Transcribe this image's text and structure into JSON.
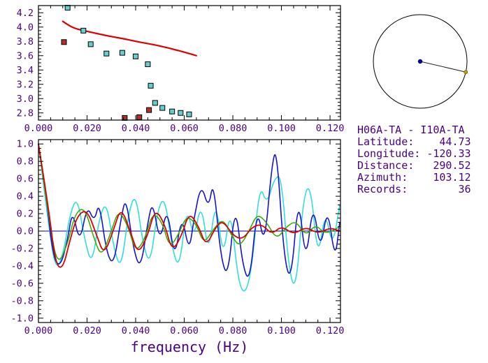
{
  "colors": {
    "text": "#4b0082",
    "axis": "#000000",
    "zero_line": "#000080",
    "center_dot": "#000080",
    "azimuth_dot": "#b8a000",
    "circle_outline": "#000000"
  },
  "info_panel": {
    "title": "H06A-TA - I10A-TA",
    "lines": [
      "Latitude:    44.73",
      "Longitude: -120.33",
      "Distance:   290.52",
      "Azimuth:    103.12",
      "Records:        36"
    ]
  },
  "chart_data": [
    {
      "type": "scatter",
      "title": "",
      "xlabel": "",
      "ylabel": "",
      "xlim": [
        0,
        0.1243
      ],
      "ylim": [
        2.7,
        4.3
      ],
      "x_minor": 0.005,
      "y_minor": 0.05,
      "grid": false,
      "legend": "none",
      "xticks": [
        0,
        0.02,
        0.04,
        0.06,
        0.08,
        0.1,
        0.12
      ],
      "xtick_labels": [
        "0.000",
        "0.020",
        "0.040",
        "0.060",
        "0.080",
        "0.100",
        "0.120"
      ],
      "yticks": [
        2.8,
        3.0,
        3.2,
        3.4,
        3.6,
        3.8,
        4.0,
        4.2
      ],
      "ytick_labels": [
        "2.8",
        "3.0",
        "3.2",
        "3.4",
        "3.6",
        "3.8",
        "4.0",
        "4.2"
      ],
      "series": [
        {
          "name": "reference-dispersion-curve",
          "kind": "line",
          "color": "#dd0000",
          "width": 2.2,
          "points": [
            [
              0.01,
              4.08
            ],
            [
              0.013,
              4.01
            ],
            [
              0.016,
              3.97
            ],
            [
              0.02,
              3.94
            ],
            [
              0.024,
              3.91
            ],
            [
              0.028,
              3.88
            ],
            [
              0.032,
              3.855
            ],
            [
              0.036,
              3.83
            ],
            [
              0.04,
              3.8
            ],
            [
              0.044,
              3.775
            ],
            [
              0.048,
              3.75
            ],
            [
              0.052,
              3.72
            ],
            [
              0.056,
              3.685
            ],
            [
              0.06,
              3.65
            ],
            [
              0.063,
              3.62
            ],
            [
              0.065,
              3.6
            ]
          ]
        },
        {
          "name": "accepted-measurements",
          "kind": "scatter",
          "marker": "square",
          "color": "#63cfcf",
          "points": [
            [
              0.012,
              4.27
            ],
            [
              0.0185,
              3.95
            ],
            [
              0.0215,
              3.76
            ],
            [
              0.028,
              3.63
            ],
            [
              0.0345,
              3.64
            ],
            [
              0.04,
              3.59
            ],
            [
              0.045,
              3.48
            ],
            [
              0.0462,
              3.18
            ],
            [
              0.048,
              2.94
            ],
            [
              0.051,
              2.87
            ],
            [
              0.055,
              2.82
            ],
            [
              0.0585,
              2.8
            ],
            [
              0.062,
              2.78
            ]
          ]
        },
        {
          "name": "rejected-measurements",
          "kind": "scatter",
          "marker": "square",
          "color": "#b03030",
          "points": [
            [
              0.0105,
              3.79
            ],
            [
              0.0355,
              2.73
            ],
            [
              0.0415,
              2.74
            ],
            [
              0.0455,
              2.84
            ]
          ]
        }
      ]
    },
    {
      "type": "line",
      "title": "",
      "xlabel": "frequency (Hz)",
      "ylabel": "",
      "xlim": [
        0,
        0.1243
      ],
      "ylim": [
        -1.05,
        1.05
      ],
      "x_minor": 0.005,
      "y_minor": 0.05,
      "grid": false,
      "legend": "none",
      "zero_line": true,
      "xticks": [
        0,
        0.02,
        0.04,
        0.06,
        0.08,
        0.1,
        0.12
      ],
      "xtick_labels": [
        "0.000",
        "0.020",
        "0.040",
        "0.060",
        "0.080",
        "0.100",
        "0.120"
      ],
      "yticks": [
        -1.0,
        -0.8,
        -0.6,
        -0.4,
        -0.2,
        0.0,
        0.2,
        0.4,
        0.6,
        0.8,
        1.0
      ],
      "ytick_labels": [
        "-1.0",
        "-0.8",
        "-0.6",
        "-0.4",
        "-0.2",
        "0.0",
        "0.2",
        "0.4",
        "0.6",
        "0.8",
        "1.0"
      ],
      "series": [
        {
          "name": "trace-cyan",
          "kind": "line",
          "color": "#30dede",
          "width": 1.6,
          "points": [
            [
              0,
              1.0
            ],
            [
              0.004,
              0.1
            ],
            [
              0.007,
              -0.45
            ],
            [
              0.01,
              -0.3
            ],
            [
              0.013,
              0.2
            ],
            [
              0.016,
              0.4
            ],
            [
              0.019,
              -0.1
            ],
            [
              0.022,
              -0.4
            ],
            [
              0.025,
              0.15
            ],
            [
              0.028,
              0.35
            ],
            [
              0.031,
              -0.2
            ],
            [
              0.034,
              -0.45
            ],
            [
              0.037,
              0.2
            ],
            [
              0.04,
              0.45
            ],
            [
              0.043,
              -0.15
            ],
            [
              0.046,
              -0.4
            ],
            [
              0.049,
              0.25
            ],
            [
              0.052,
              0.4
            ],
            [
              0.055,
              -0.2
            ],
            [
              0.058,
              -0.45
            ],
            [
              0.061,
              0.3
            ],
            [
              0.064,
              -0.1
            ],
            [
              0.067,
              0.35
            ],
            [
              0.07,
              -0.3
            ],
            [
              0.073,
              0.4
            ],
            [
              0.076,
              -0.35
            ],
            [
              0.079,
              0.3
            ],
            [
              0.082,
              -0.55
            ],
            [
              0.085,
              -0.75
            ],
            [
              0.088,
              -0.4
            ],
            [
              0.091,
              0.55
            ],
            [
              0.094,
              0.3
            ],
            [
              0.097,
              0.6
            ],
            [
              0.1,
              0.65
            ],
            [
              0.103,
              -0.45
            ],
            [
              0.106,
              -0.7
            ],
            [
              0.109,
              0.4
            ],
            [
              0.112,
              0.55
            ],
            [
              0.115,
              -0.35
            ],
            [
              0.118,
              0.25
            ],
            [
              0.121,
              -0.2
            ],
            [
              0.124,
              0.3
            ]
          ]
        },
        {
          "name": "trace-blue",
          "kind": "line",
          "color": "#1414cc",
          "width": 1.6,
          "points": [
            [
              0,
              1.0
            ],
            [
              0.003,
              0.45
            ],
            [
              0.006,
              -0.3
            ],
            [
              0.009,
              -0.42
            ],
            [
              0.012,
              -0.1
            ],
            [
              0.014,
              0.25
            ],
            [
              0.017,
              -0.15
            ],
            [
              0.02,
              0.3
            ],
            [
              0.023,
              0.1
            ],
            [
              0.025,
              0.35
            ],
            [
              0.028,
              -0.25
            ],
            [
              0.031,
              -0.4
            ],
            [
              0.034,
              0.15
            ],
            [
              0.036,
              0.4
            ],
            [
              0.039,
              -0.2
            ],
            [
              0.042,
              -0.45
            ],
            [
              0.045,
              0.1
            ],
            [
              0.047,
              0.35
            ],
            [
              0.05,
              -0.15
            ],
            [
              0.053,
              0.3
            ],
            [
              0.056,
              -0.35
            ],
            [
              0.059,
              0.2
            ],
            [
              0.062,
              -0.25
            ],
            [
              0.064,
              0.15
            ],
            [
              0.067,
              0.55
            ],
            [
              0.07,
              0.25
            ],
            [
              0.072,
              0.6
            ],
            [
              0.075,
              -0.3
            ],
            [
              0.078,
              -0.55
            ],
            [
              0.081,
              0.35
            ],
            [
              0.084,
              -0.4
            ],
            [
              0.087,
              -0.6
            ],
            [
              0.09,
              0.3
            ],
            [
              0.093,
              -0.2
            ],
            [
              0.096,
              0.75
            ],
            [
              0.098,
              0.97
            ],
            [
              0.101,
              -0.3
            ],
            [
              0.104,
              -0.6
            ],
            [
              0.107,
              0.45
            ],
            [
              0.11,
              -0.4
            ],
            [
              0.113,
              0.35
            ],
            [
              0.116,
              -0.25
            ],
            [
              0.119,
              0.3
            ],
            [
              0.122,
              -0.35
            ],
            [
              0.124,
              0.1
            ]
          ]
        },
        {
          "name": "trace-green",
          "kind": "line",
          "color": "#33aa00",
          "width": 1.5,
          "points": [
            [
              0,
              1.0
            ],
            [
              0.005,
              0.0
            ],
            [
              0.008,
              -0.4
            ],
            [
              0.012,
              -0.15
            ],
            [
              0.015,
              0.2
            ],
            [
              0.019,
              0.28
            ],
            [
              0.023,
              -0.1
            ],
            [
              0.026,
              -0.3
            ],
            [
              0.03,
              0.0
            ],
            [
              0.033,
              0.25
            ],
            [
              0.037,
              0.05
            ],
            [
              0.04,
              -0.25
            ],
            [
              0.044,
              -0.08
            ],
            [
              0.047,
              0.22
            ],
            [
              0.051,
              0.1
            ],
            [
              0.054,
              -0.2
            ],
            [
              0.058,
              -0.02
            ],
            [
              0.061,
              0.18
            ],
            [
              0.065,
              0.08
            ],
            [
              0.068,
              -0.15
            ],
            [
              0.072,
              0.02
            ],
            [
              0.076,
              0.15
            ],
            [
              0.08,
              -0.08
            ],
            [
              0.083,
              -0.18
            ],
            [
              0.087,
              0.02
            ],
            [
              0.09,
              0.2
            ],
            [
              0.094,
              0.1
            ],
            [
              0.098,
              -0.1
            ],
            [
              0.102,
              0.05
            ],
            [
              0.106,
              0.12
            ],
            [
              0.11,
              -0.06
            ],
            [
              0.114,
              0.08
            ],
            [
              0.118,
              -0.04
            ],
            [
              0.124,
              0.05
            ]
          ]
        },
        {
          "name": "trace-red",
          "kind": "line",
          "color": "#dd0000",
          "width": 1.8,
          "points": [
            [
              0,
              1.0
            ],
            [
              0.004,
              0.3
            ],
            [
              0.007,
              -0.38
            ],
            [
              0.01,
              -0.44
            ],
            [
              0.013,
              -0.1
            ],
            [
              0.016,
              0.18
            ],
            [
              0.02,
              0.25
            ],
            [
              0.024,
              -0.05
            ],
            [
              0.027,
              -0.28
            ],
            [
              0.031,
              0.02
            ],
            [
              0.034,
              0.28
            ],
            [
              0.038,
              -0.02
            ],
            [
              0.041,
              -0.27
            ],
            [
              0.045,
              -0.05
            ],
            [
              0.048,
              0.26
            ],
            [
              0.052,
              0.08
            ],
            [
              0.055,
              -0.24
            ],
            [
              0.059,
              -0.05
            ],
            [
              0.062,
              0.22
            ],
            [
              0.066,
              0.05
            ],
            [
              0.069,
              -0.18
            ],
            [
              0.073,
              0.05
            ],
            [
              0.076,
              0.12
            ],
            [
              0.08,
              -0.05
            ],
            [
              0.084,
              -0.1
            ],
            [
              0.088,
              0.05
            ],
            [
              0.092,
              0.08
            ],
            [
              0.096,
              -0.04
            ],
            [
              0.1,
              0.06
            ],
            [
              0.105,
              -0.04
            ],
            [
              0.11,
              0.05
            ],
            [
              0.115,
              -0.03
            ],
            [
              0.12,
              0.04
            ],
            [
              0.124,
              0.0
            ]
          ]
        }
      ]
    },
    {
      "type": "other",
      "name": "azimuth-circle",
      "azimuth_deg": 103.12,
      "center_marker_color": "#000080",
      "azimuth_marker_color": "#b8a000"
    }
  ]
}
